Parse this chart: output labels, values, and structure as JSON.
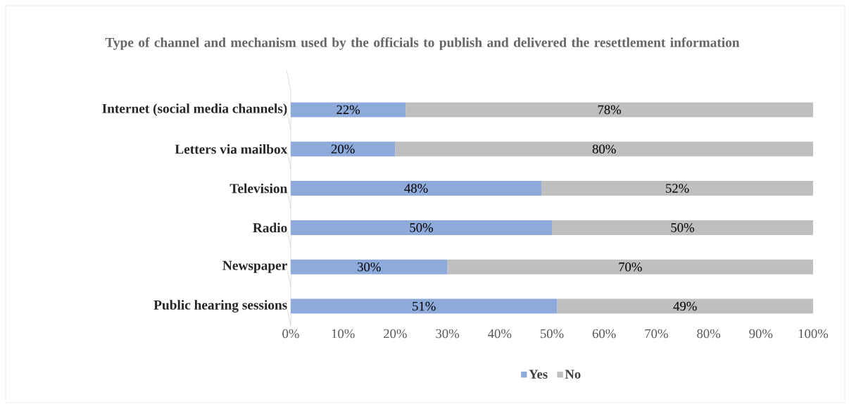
{
  "chart_data": {
    "type": "bar",
    "orientation": "horizontal",
    "stacked": true,
    "title": "Type of channel and mechanism used by the officials to publish and delivered the resettlement information",
    "categories": [
      "Internet (social media channels)",
      "Letters via mailbox",
      "Television",
      "Radio",
      "Newspaper",
      "Public hearing sessions"
    ],
    "series": [
      {
        "name": "Yes",
        "color": "#8eaadb",
        "values": [
          22,
          20,
          48,
          50,
          30,
          51
        ],
        "value_labels": [
          "22%",
          "20%",
          "48%",
          "50%",
          "30%",
          "51%"
        ]
      },
      {
        "name": "No",
        "color": "#bfbfbf",
        "values": [
          78,
          80,
          52,
          50,
          70,
          49
        ],
        "value_labels": [
          "78%",
          "80%",
          "52%",
          "50%",
          "70%",
          "49%"
        ]
      }
    ],
    "xlim": [
      0,
      100
    ],
    "xticks": [
      {
        "value": 0,
        "label": "0%"
      },
      {
        "value": 10,
        "label": "10%"
      },
      {
        "value": 20,
        "label": "20%"
      },
      {
        "value": 30,
        "label": "30%"
      },
      {
        "value": 40,
        "label": "40%"
      },
      {
        "value": 50,
        "label": "50%"
      },
      {
        "value": 60,
        "label": "60%"
      },
      {
        "value": 70,
        "label": "70%"
      },
      {
        "value": 80,
        "label": "80%"
      },
      {
        "value": 90,
        "label": "90%"
      },
      {
        "value": 100,
        "label": "100%"
      }
    ],
    "legend": "bottom"
  }
}
